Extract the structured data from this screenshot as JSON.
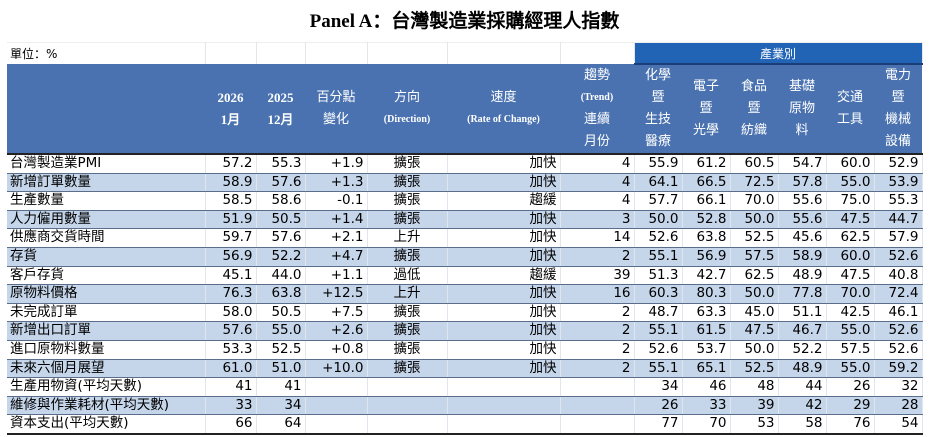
{
  "title": "Panel A：台灣製造業採購經理人指數",
  "unit": "單位：%",
  "industry_group": "產業別",
  "headers": {
    "c1": [
      "2026",
      "1月"
    ],
    "c2": [
      "2025",
      "12月"
    ],
    "c3": [
      "百分點",
      "變化"
    ],
    "c4": [
      "方向",
      "(Direction)"
    ],
    "c5": [
      "速度",
      "(Rate of Change)"
    ],
    "c6": [
      "趨勢",
      "(Trend)",
      "連續",
      "月份"
    ],
    "industries": [
      [
        "化學",
        "暨",
        "生技",
        "醫療"
      ],
      [
        "電子",
        "暨",
        "光學"
      ],
      [
        "食品",
        "暨",
        "紡織"
      ],
      [
        "基礎",
        "原物",
        "料"
      ],
      [
        "交通",
        "工具"
      ],
      [
        "電力",
        "暨",
        "機械",
        "設備"
      ]
    ]
  },
  "rows": [
    {
      "label": "台灣製造業PMI",
      "cur": "57.2",
      "prev": "55.3",
      "chg": "+1.9",
      "dir": "擴張",
      "spd": "加快",
      "trend": "4",
      "ind": [
        "55.9",
        "61.2",
        "60.5",
        "54.7",
        "60.0",
        "52.9"
      ]
    },
    {
      "label": "新增訂單數量",
      "cur": "58.9",
      "prev": "57.6",
      "chg": "+1.3",
      "dir": "擴張",
      "spd": "加快",
      "trend": "4",
      "ind": [
        "64.1",
        "66.5",
        "72.5",
        "57.8",
        "55.0",
        "53.9"
      ]
    },
    {
      "label": "生產數量",
      "cur": "58.5",
      "prev": "58.6",
      "chg": "-0.1",
      "dir": "擴張",
      "spd": "趨緩",
      "trend": "4",
      "ind": [
        "57.7",
        "66.1",
        "70.0",
        "55.6",
        "75.0",
        "55.3"
      ]
    },
    {
      "label": "人力僱用數量",
      "cur": "51.9",
      "prev": "50.5",
      "chg": "+1.4",
      "dir": "擴張",
      "spd": "加快",
      "trend": "3",
      "ind": [
        "50.0",
        "52.8",
        "50.0",
        "55.6",
        "47.5",
        "44.7"
      ]
    },
    {
      "label": "供應商交貨時間",
      "cur": "59.7",
      "prev": "57.6",
      "chg": "+2.1",
      "dir": "上升",
      "spd": "加快",
      "trend": "14",
      "ind": [
        "52.6",
        "63.8",
        "52.5",
        "45.6",
        "62.5",
        "57.9"
      ]
    },
    {
      "label": "存貨",
      "cur": "56.9",
      "prev": "52.2",
      "chg": "+4.7",
      "dir": "擴張",
      "spd": "加快",
      "trend": "2",
      "ind": [
        "55.1",
        "56.9",
        "57.5",
        "58.9",
        "60.0",
        "52.6"
      ]
    },
    {
      "label": "客戶存貨",
      "cur": "45.1",
      "prev": "44.0",
      "chg": "+1.1",
      "dir": "過低",
      "spd": "趨緩",
      "trend": "39",
      "ind": [
        "51.3",
        "42.7",
        "62.5",
        "48.9",
        "47.5",
        "40.8"
      ]
    },
    {
      "label": "原物料價格",
      "cur": "76.3",
      "prev": "63.8",
      "chg": "+12.5",
      "dir": "上升",
      "spd": "加快",
      "trend": "16",
      "ind": [
        "60.3",
        "80.3",
        "50.0",
        "77.8",
        "70.0",
        "72.4"
      ]
    },
    {
      "label": "未完成訂單",
      "cur": "58.0",
      "prev": "50.5",
      "chg": "+7.5",
      "dir": "擴張",
      "spd": "加快",
      "trend": "2",
      "ind": [
        "48.7",
        "63.3",
        "45.0",
        "51.1",
        "42.5",
        "46.1"
      ]
    },
    {
      "label": "新增出口訂單",
      "cur": "57.6",
      "prev": "55.0",
      "chg": "+2.6",
      "dir": "擴張",
      "spd": "加快",
      "trend": "2",
      "ind": [
        "55.1",
        "61.5",
        "47.5",
        "46.7",
        "55.0",
        "52.6"
      ]
    },
    {
      "label": "進口原物料數量",
      "cur": "53.3",
      "prev": "52.5",
      "chg": "+0.8",
      "dir": "擴張",
      "spd": "加快",
      "trend": "2",
      "ind": [
        "52.6",
        "53.7",
        "50.0",
        "52.2",
        "57.5",
        "52.6"
      ]
    },
    {
      "label": "未來六個月展望",
      "cur": "61.0",
      "prev": "51.0",
      "chg": "+10.0",
      "dir": "擴張",
      "spd": "加快",
      "trend": "2",
      "ind": [
        "55.1",
        "65.1",
        "52.5",
        "48.9",
        "55.0",
        "59.2"
      ]
    },
    {
      "label": "生產用物資(平均天數)",
      "cur": "41",
      "prev": "41",
      "chg": "",
      "dir": "",
      "spd": "",
      "trend": "",
      "ind": [
        "34",
        "46",
        "48",
        "44",
        "26",
        "32"
      ]
    },
    {
      "label": "維修與作業耗材(平均天數)",
      "cur": "33",
      "prev": "34",
      "chg": "",
      "dir": "",
      "spd": "",
      "trend": "",
      "ind": [
        "26",
        "33",
        "39",
        "42",
        "29",
        "28"
      ]
    },
    {
      "label": "資本支出(平均天數)",
      "cur": "66",
      "prev": "64",
      "chg": "",
      "dir": "",
      "spd": "",
      "trend": "",
      "ind": [
        "77",
        "70",
        "53",
        "58",
        "76",
        "54"
      ]
    }
  ],
  "colors": {
    "header_bg": "#4a72b0",
    "industry_bg": "#2163b4",
    "alt_row": "#c5d5ea"
  }
}
